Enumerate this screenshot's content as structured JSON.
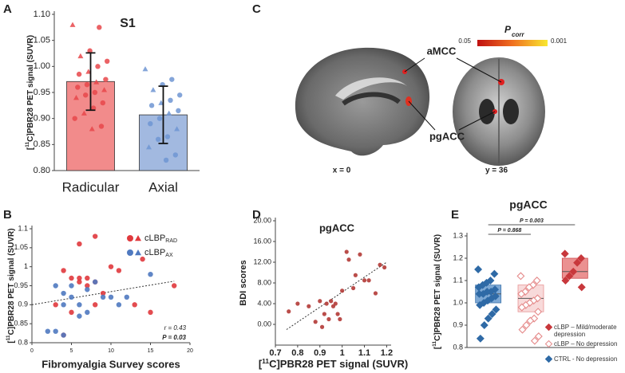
{
  "panel_labels": [
    "A",
    "B",
    "C",
    "D",
    "E"
  ],
  "brain_figure": {
    "regions": [
      "aMCC",
      "pgACC"
    ],
    "slices": [
      "x = 0",
      "y = 36"
    ],
    "colorbar": {
      "title": "P",
      "title_sub": "corr",
      "low": "0.05",
      "high": "0.001"
    }
  },
  "chart_data": [
    {
      "type": "bar",
      "title": "S1",
      "ylabel": {
        "pre": "[",
        "sup": "11",
        "post": "C]PBR28 PET signal (SUVR)"
      },
      "categories": [
        "Radicular",
        "Axial"
      ],
      "values": [
        0.971,
        0.907
      ],
      "errors": [
        0.055,
        0.055
      ],
      "colors": [
        "#f28b8b",
        "#a2b9e0"
      ],
      "point_colors": [
        "#e8474a",
        "#6f95d2"
      ],
      "points": [
        [
          1.08,
          1.075,
          1.03,
          1.02,
          1.01,
          1.0,
          0.99,
          0.985,
          0.975,
          0.97,
          0.965,
          0.96,
          0.955,
          0.95,
          0.945,
          0.94,
          0.93,
          0.92,
          0.91,
          0.9,
          0.885,
          0.88
        ],
        [
          0.995,
          0.975,
          0.965,
          0.955,
          0.945,
          0.935,
          0.93,
          0.925,
          0.915,
          0.91,
          0.9,
          0.89,
          0.88,
          0.865,
          0.86,
          0.845,
          0.83,
          0.82
        ]
      ],
      "ylim": [
        0.8,
        1.1
      ],
      "yticks": [
        {
          "value": 0.8,
          "label": "0.80"
        },
        0.85,
        {
          "value": 0.9,
          "label": "0.90"
        },
        0.95,
        {
          "value": 1,
          "label": "1.00"
        },
        1.05,
        {
          "value": 1.1,
          "label": "1.10"
        }
      ]
    },
    {
      "type": "scatter",
      "xlabel": "Fibromyalgia Survey scores",
      "ylabel": {
        "pre": "[",
        "sup": "11",
        "post": "C]PBR28 PET signal (SUVR)"
      },
      "series": [
        {
          "name": "cLBP",
          "name_sub": "RAD",
          "color": "#e0393d",
          "x": [
            4,
            5,
            6,
            7,
            7,
            8,
            8,
            3,
            6,
            9,
            10,
            11,
            13,
            14,
            15,
            18,
            4,
            5,
            6,
            8
          ],
          "values": [
            0.99,
            0.97,
            1.06,
            0.97,
            0.95,
            1.08,
            0.96,
            0.9,
            0.96,
            0.93,
            1.0,
            0.99,
            0.9,
            1.02,
            0.88,
            0.95,
            0.82,
            0.88,
            0.97,
            0.9
          ]
        },
        {
          "name": "cLBP",
          "name_sub": "AX",
          "color": "#4f79c0",
          "x": [
            2,
            3,
            3,
            4,
            4,
            5,
            5,
            6,
            7,
            7,
            8,
            9,
            10,
            11,
            15,
            4,
            6,
            12
          ],
          "values": [
            0.83,
            0.83,
            0.95,
            0.93,
            0.9,
            0.95,
            0.92,
            0.9,
            0.94,
            0.88,
            0.96,
            0.92,
            0.92,
            0.9,
            0.98,
            0.82,
            0.87,
            0.92
          ]
        }
      ],
      "trendline": {
        "x": [
          0,
          18
        ],
        "y": [
          0.9,
          0.962
        ]
      },
      "annotations": [
        "r = 0.43",
        "P = 0.03"
      ],
      "legend": "upper right",
      "xlim": [
        0,
        20
      ],
      "xticks": [
        0,
        5,
        10,
        15,
        20
      ],
      "ylim": [
        0.8,
        1.1
      ],
      "yticks": [
        0.8,
        0.85,
        0.9,
        0.95,
        1,
        1.05,
        1.1
      ]
    },
    {
      "type": "scatter",
      "title": "pgACC",
      "xlabel": {
        "pre": "[",
        "sup": "11",
        "post": "C]PBR28 PET signal (SUVR)"
      },
      "ylabel": "BDI scores",
      "series": [
        {
          "color": "#b33a36",
          "x": [
            0.76,
            0.8,
            0.85,
            0.88,
            0.9,
            0.91,
            0.92,
            0.93,
            0.94,
            0.95,
            0.96,
            0.97,
            0.98,
            0.99,
            1.0,
            1.02,
            1.03,
            1.05,
            1.06,
            1.08,
            1.1,
            1.12,
            1.15,
            1.17,
            1.19
          ],
          "values": [
            2.5,
            4,
            3.5,
            0.5,
            4.5,
            -0.5,
            2,
            4,
            1,
            4.5,
            3.5,
            4,
            2,
            1,
            6.5,
            14,
            12.5,
            7,
            9.5,
            13.5,
            8.5,
            8.5,
            6,
            11.5,
            11
          ]
        }
      ],
      "trendline": {
        "x": [
          0.75,
          1.2
        ],
        "y": [
          -1,
          12
        ]
      },
      "xlim": [
        0.7,
        1.22
      ],
      "xticks": [
        0.7,
        0.8,
        0.9,
        1,
        1.1,
        1.2
      ],
      "ylim": [
        -4,
        20
      ],
      "yticks": [
        {
          "value": 0,
          "label": "0.00"
        },
        {
          "value": 4,
          "label": "4.00"
        },
        {
          "value": 8,
          "label": "8.00"
        },
        {
          "value": 12,
          "label": "12.00"
        },
        {
          "value": 16,
          "label": "16.00"
        },
        {
          "value": 20,
          "label": "20.00"
        }
      ]
    },
    {
      "type": "box",
      "title": "pgACC",
      "ylabel": {
        "pre": "[",
        "sup": "11",
        "post": "C]PBR28 PET signal (SUVR)"
      },
      "series": [
        {
          "name": "CTRL - No depression",
          "color": "#2f6aa6",
          "fill": "#2f6aa6",
          "box_color": "#6f9fd0",
          "q1": 1.0,
          "median": 1.04,
          "q3": 1.08,
          "values": [
            1.15,
            1.13,
            1.1,
            1.09,
            1.08,
            1.07,
            1.06,
            1.05,
            1.05,
            1.04,
            1.04,
            1.03,
            1.02,
            1.01,
            1.0,
            0.99,
            0.97,
            0.95,
            0.93,
            0.9,
            0.84
          ]
        },
        {
          "name": "cLBP – No depression",
          "color": "#e58a8a",
          "fill": "#ffffff",
          "box_color": "#f8d6d6",
          "q1": 0.96,
          "median": 1.02,
          "q3": 1.08,
          "values": [
            1.12,
            1.1,
            1.08,
            1.07,
            1.05,
            1.04,
            1.02,
            1.01,
            1.0,
            0.99,
            0.98,
            0.96,
            0.93,
            0.92,
            0.9,
            0.88,
            0.85,
            0.83
          ]
        },
        {
          "name": "cLBP – Mild/moderate depression",
          "color": "#c8383c",
          "fill": "#c8383c",
          "box_color": "#e98686",
          "q1": 1.11,
          "median": 1.14,
          "q3": 1.2,
          "values": [
            1.22,
            1.2,
            1.18,
            1.14,
            1.12,
            1.1,
            1.07
          ]
        }
      ],
      "comparisons": [
        {
          "groups": [
            0,
            1
          ],
          "label": "P = 0.868"
        },
        {
          "groups": [
            0,
            2
          ],
          "label": "P = 0.003"
        }
      ],
      "ylim": [
        0.8,
        1.3
      ],
      "yticks": [
        0.8,
        0.9,
        {
          "value": 1,
          "label": "1.0"
        },
        1.1,
        1.2,
        1.3
      ]
    }
  ]
}
